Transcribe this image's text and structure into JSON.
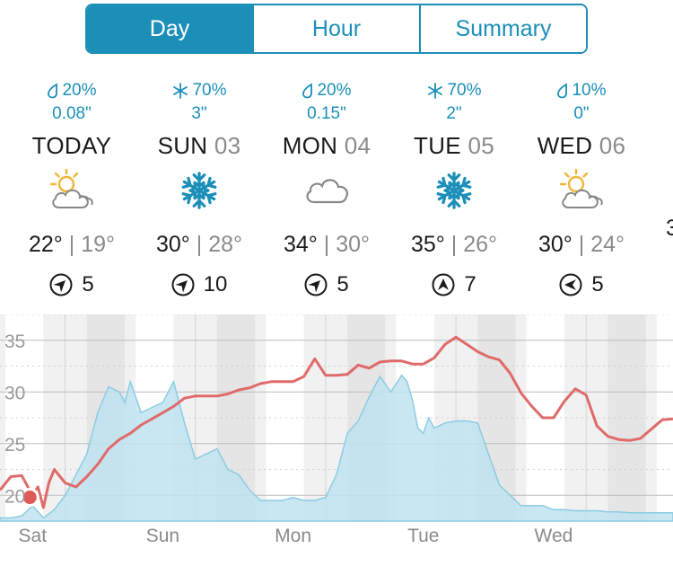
{
  "tabs": [
    {
      "label": "Day",
      "active": true
    },
    {
      "label": "Hour",
      "active": false
    },
    {
      "label": "Summary",
      "active": false
    }
  ],
  "days": [
    {
      "precip_type": "rain",
      "chance": "20%",
      "amount": "0.08\"",
      "name": "TODAY",
      "num": "",
      "icon": "partly-cloudy-icon",
      "high": "22°",
      "low": "19°",
      "wind_dir": "southwest",
      "wind": "5"
    },
    {
      "precip_type": "snow",
      "chance": "70%",
      "amount": "3\"",
      "name": "SUN",
      "num": "03",
      "icon": "snowflake-icon",
      "high": "30°",
      "low": "28°",
      "wind_dir": "southwest",
      "wind": "10"
    },
    {
      "precip_type": "rain",
      "chance": "20%",
      "amount": "0.15\"",
      "name": "MON",
      "num": "04",
      "icon": "cloud-icon",
      "high": "34°",
      "low": "30°",
      "wind_dir": "southwest",
      "wind": "5"
    },
    {
      "precip_type": "snow",
      "chance": "70%",
      "amount": "2\"",
      "name": "TUE",
      "num": "05",
      "icon": "snowflake-icon",
      "high": "35°",
      "low": "26°",
      "wind_dir": "south",
      "wind": "7"
    },
    {
      "precip_type": "rain",
      "chance": "10%",
      "amount": "0\"",
      "name": "WED",
      "num": "06",
      "icon": "partly-cloudy-icon",
      "high": "30°",
      "low": "24°",
      "wind_dir": "east",
      "wind": "5"
    }
  ],
  "partial_next_day_temp": "3",
  "colors": {
    "accent": "#1b8fb8",
    "temp_line": "#e06a6a",
    "precip_fill": "#bfe3f0",
    "precip_stroke": "#8ccbe2"
  },
  "chart_data": {
    "type": "line",
    "y_ticks": [
      "35",
      "30",
      "25",
      "20"
    ],
    "ylim": [
      17.5,
      37.5
    ],
    "x_labels": [
      "Sat",
      "Sun",
      "Mon",
      "Tue",
      "Wed"
    ],
    "x_range_hours": [
      0,
      124
    ],
    "day_label_hours": [
      6,
      30,
      54,
      78,
      102
    ],
    "series": [
      {
        "kind": "temperature",
        "x": [
          0,
          2,
          4,
          6,
          7,
          8,
          9,
          10,
          12,
          14,
          16,
          18,
          20,
          22,
          24,
          26,
          28,
          30,
          32,
          34,
          36,
          38,
          40,
          42,
          44,
          46,
          48,
          50,
          52,
          54,
          56,
          58,
          60,
          62,
          64,
          66,
          68,
          70,
          72,
          74,
          76,
          78,
          80,
          82,
          84,
          86,
          88,
          90,
          92,
          94,
          96,
          98,
          100,
          102,
          104,
          106,
          108,
          110,
          112,
          114,
          116,
          118,
          120,
          122,
          124
        ],
        "y": [
          20.5,
          21.8,
          21.9,
          20.0,
          20.8,
          18.8,
          21.2,
          22.5,
          21.2,
          20.8,
          21.8,
          23.0,
          24.5,
          25.4,
          26.0,
          26.8,
          27.4,
          28.0,
          28.6,
          29.4,
          29.6,
          29.6,
          29.6,
          29.8,
          30.2,
          30.4,
          30.8,
          31.0,
          31.0,
          31.0,
          31.5,
          33.2,
          31.6,
          31.6,
          31.7,
          32.6,
          32.3,
          32.9,
          33.0,
          33.0,
          32.7,
          32.7,
          33.3,
          34.6,
          35.3,
          34.6,
          33.9,
          33.4,
          33.1,
          31.8,
          29.9,
          28.6,
          27.5,
          27.5,
          29.1,
          30.3,
          29.7,
          26.7,
          25.7,
          25.4,
          25.3,
          25.5,
          26.4,
          27.3,
          27.4
        ]
      },
      {
        "kind": "precipitation",
        "x": [
          0,
          2,
          4,
          6,
          8,
          10,
          12,
          14,
          16,
          18,
          20,
          22,
          23,
          24,
          26,
          28,
          30,
          32,
          34,
          36,
          38,
          40,
          42,
          44,
          46,
          48,
          50,
          52,
          54,
          56,
          58,
          60,
          62,
          64,
          66,
          68,
          70,
          72,
          74,
          75,
          76,
          77,
          78,
          79,
          80,
          82,
          84,
          86,
          88,
          90,
          92,
          94,
          96,
          98,
          100,
          102,
          104,
          106,
          108,
          110,
          112,
          114,
          116,
          118,
          120,
          122,
          124
        ],
        "y": [
          17.8,
          17.8,
          18.0,
          19.0,
          17.8,
          18.6,
          20.0,
          22.0,
          24.0,
          28.0,
          30.5,
          30.0,
          29.0,
          31.0,
          28.0,
          28.5,
          29.0,
          31.0,
          27.0,
          23.5,
          24.0,
          24.5,
          22.5,
          22.0,
          20.5,
          19.5,
          19.5,
          19.5,
          19.8,
          19.5,
          19.5,
          19.8,
          22.0,
          26.0,
          27.2,
          29.5,
          31.5,
          30.0,
          31.6,
          31.0,
          29.2,
          26.5,
          26.0,
          27.5,
          26.5,
          27.0,
          27.2,
          27.2,
          27.0,
          24.0,
          21.0,
          20.0,
          19.0,
          19.0,
          19.0,
          18.6,
          18.6,
          18.5,
          18.5,
          18.5,
          18.4,
          18.4,
          18.3,
          18.3,
          18.3,
          18.3,
          18.3
        ]
      }
    ]
  }
}
